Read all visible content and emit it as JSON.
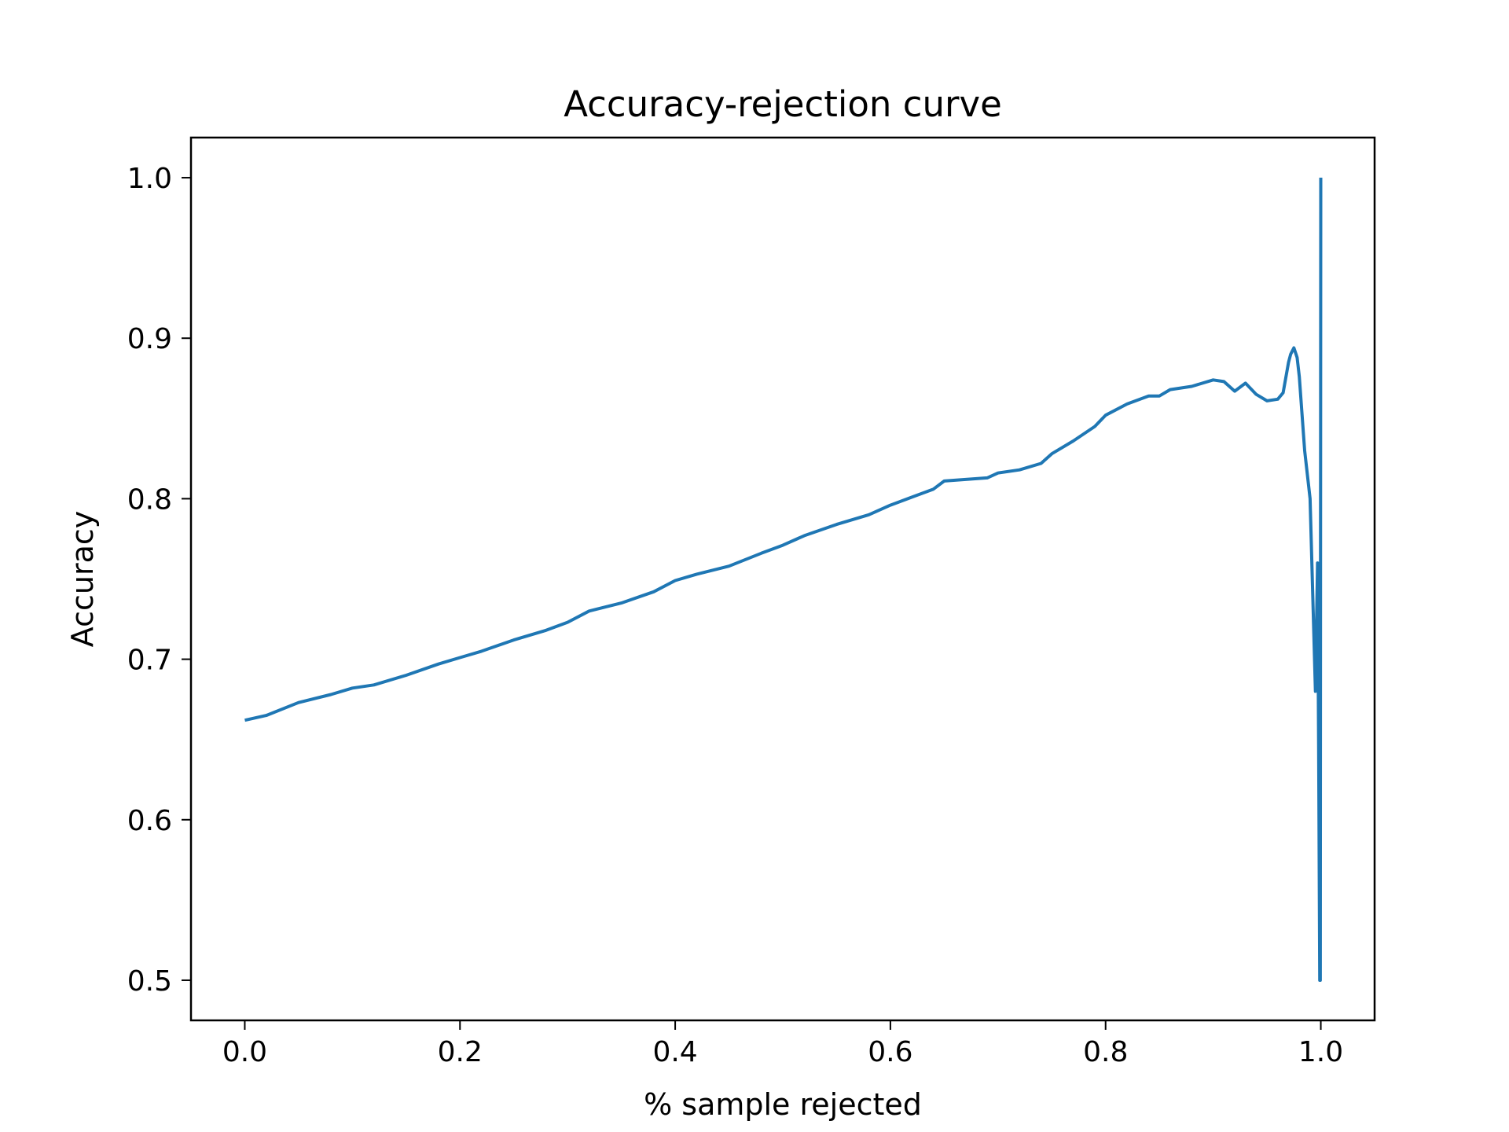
{
  "chart_data": {
    "type": "line",
    "title": "Accuracy-rejection curve",
    "xlabel": "% sample rejected",
    "ylabel": "Accuracy",
    "xlim": [
      -0.05,
      1.05
    ],
    "ylim": [
      0.475,
      1.025
    ],
    "xticks": [
      0.0,
      0.2,
      0.4,
      0.6,
      0.8,
      1.0
    ],
    "xtick_labels": [
      "0.0",
      "0.2",
      "0.4",
      "0.6",
      "0.8",
      "1.0"
    ],
    "yticks": [
      0.5,
      0.6,
      0.7,
      0.8,
      0.9,
      1.0
    ],
    "ytick_labels": [
      "0.5",
      "0.6",
      "0.7",
      "0.8",
      "0.9",
      "1.0"
    ],
    "grid": false,
    "legend": "none",
    "series": [
      {
        "color": "#1f77b4",
        "x": [
          0.0,
          0.02,
          0.05,
          0.08,
          0.1,
          0.12,
          0.15,
          0.18,
          0.2,
          0.22,
          0.25,
          0.28,
          0.3,
          0.32,
          0.35,
          0.38,
          0.4,
          0.42,
          0.45,
          0.48,
          0.5,
          0.52,
          0.55,
          0.58,
          0.6,
          0.62,
          0.64,
          0.65,
          0.67,
          0.69,
          0.7,
          0.72,
          0.74,
          0.75,
          0.77,
          0.79,
          0.8,
          0.82,
          0.84,
          0.85,
          0.86,
          0.88,
          0.9,
          0.91,
          0.92,
          0.93,
          0.94,
          0.95,
          0.96,
          0.965,
          0.97,
          0.972,
          0.975,
          0.978,
          0.98,
          0.985,
          0.99,
          0.995,
          0.997,
          0.998,
          0.999,
          0.9995,
          1.0,
          1.0
        ],
        "y": [
          0.662,
          0.665,
          0.673,
          0.678,
          0.682,
          0.684,
          0.69,
          0.697,
          0.701,
          0.705,
          0.712,
          0.718,
          0.723,
          0.73,
          0.735,
          0.742,
          0.749,
          0.753,
          0.758,
          0.766,
          0.771,
          0.777,
          0.784,
          0.79,
          0.796,
          0.801,
          0.806,
          0.811,
          0.812,
          0.813,
          0.816,
          0.818,
          0.822,
          0.828,
          0.836,
          0.845,
          0.852,
          0.859,
          0.864,
          0.864,
          0.868,
          0.87,
          0.874,
          0.873,
          0.867,
          0.872,
          0.865,
          0.861,
          0.862,
          0.866,
          0.885,
          0.89,
          0.894,
          0.888,
          0.876,
          0.83,
          0.8,
          0.68,
          0.76,
          0.645,
          0.5,
          0.5,
          1.0,
          1.0
        ]
      }
    ]
  }
}
